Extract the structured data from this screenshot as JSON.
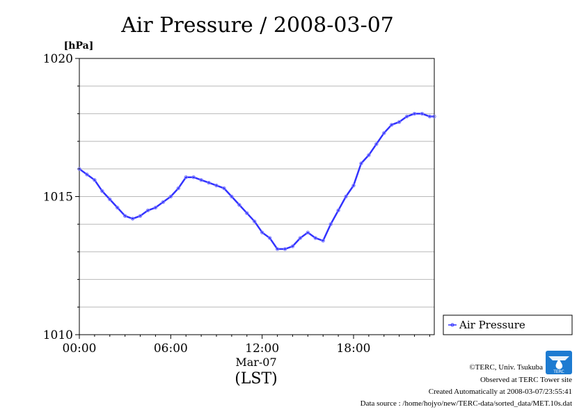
{
  "chart_data": {
    "type": "line",
    "title": "Air Pressure / 2008-03-07",
    "ylabel": "[hPa]",
    "xlabel": "(LST)",
    "date_label": "Mar-07",
    "ylim": [
      1010,
      1020
    ],
    "y_ticks": [
      "1010",
      "1015",
      "1020"
    ],
    "x_ticks": [
      "00:00",
      "06:00",
      "12:00",
      "18:00"
    ],
    "x_tick_hours": [
      0,
      6,
      12,
      18
    ],
    "xlim_hours": [
      0,
      23.3
    ],
    "grid": true,
    "legend_position": "right",
    "series": [
      {
        "name": "Air Pressure",
        "color": "#3333ff",
        "x_hours": [
          0.0,
          0.5,
          1.0,
          1.5,
          2.0,
          2.5,
          3.0,
          3.5,
          4.0,
          4.5,
          5.0,
          5.5,
          6.0,
          6.5,
          7.0,
          7.5,
          8.0,
          8.5,
          9.0,
          9.5,
          10.0,
          10.5,
          11.0,
          11.5,
          12.0,
          12.5,
          13.0,
          13.5,
          14.0,
          14.5,
          15.0,
          15.5,
          16.0,
          16.5,
          17.0,
          17.5,
          18.0,
          18.5,
          19.0,
          19.5,
          20.0,
          20.5,
          21.0,
          21.5,
          22.0,
          22.5,
          23.0,
          23.3
        ],
        "values": [
          1016.0,
          1015.8,
          1015.6,
          1015.2,
          1014.9,
          1014.6,
          1014.3,
          1014.2,
          1014.3,
          1014.5,
          1014.6,
          1014.8,
          1015.0,
          1015.3,
          1015.7,
          1015.7,
          1015.6,
          1015.5,
          1015.4,
          1015.3,
          1015.0,
          1014.7,
          1014.4,
          1014.1,
          1013.7,
          1013.5,
          1013.1,
          1013.1,
          1013.2,
          1013.5,
          1013.7,
          1013.5,
          1013.4,
          1014.0,
          1014.5,
          1015.0,
          1015.4,
          1016.2,
          1016.5,
          1016.9,
          1017.3,
          1017.6,
          1017.7,
          1017.9,
          1018.0,
          1018.0,
          1017.9,
          1017.9
        ]
      }
    ]
  },
  "footer": {
    "copyright": "©TERC, Univ. Tsukuba",
    "site": "Observed at TERC Tower site",
    "created": "Created Automatically at 2008-03-07/23:55:41",
    "source": "Data source : /home/hojyo/new/TERC-data/sorted_data/MET.10s.dat"
  },
  "logo": {
    "text": "TERC",
    "color": "#1d7bd1"
  }
}
